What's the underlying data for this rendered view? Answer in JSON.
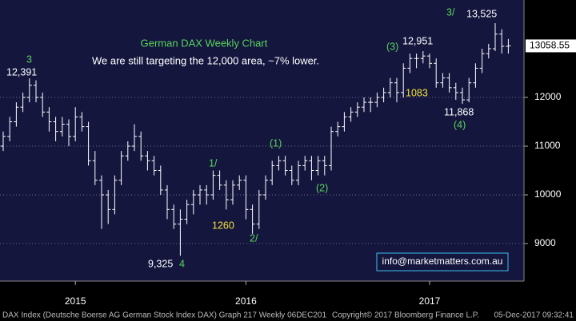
{
  "chart_data": {
    "type": "ohlc",
    "title": "German DAX Weekly Chart",
    "annotations": [
      "We are still targeting the 12,000 area, ~7% lower.",
      "12,391",
      "3",
      "9,325",
      "4",
      "1/",
      "1260",
      "2/",
      "(1)",
      "(2)",
      "(3)",
      "12,951",
      "1083",
      "11,868",
      "(4)",
      "3/",
      "13,525"
    ],
    "contact": "info@marketmatters.com.au",
    "footer": {
      "left": "DAX Index (Deutsche Boerse AG German Stock Index DAX) Graph 217  Weekly 06DEC201",
      "middle": "Copyright© 2017 Bloomberg Finance L.P.",
      "right": "05-Dec-2017 09:32:41"
    },
    "color": "#ffffff",
    "ylim": [
      8230,
      14000
    ],
    "yticks": [
      9000,
      10000,
      11000,
      12000
    ],
    "xticks": [
      {
        "value": 11,
        "label": "2015"
      },
      {
        "value": 37,
        "label": "2016"
      },
      {
        "value": 65,
        "label": "2017"
      }
    ],
    "grid": true,
    "ohlc": [
      [
        11000,
        11300,
        10900,
        11200
      ],
      [
        11200,
        11600,
        11100,
        11500
      ],
      [
        11500,
        11900,
        11400,
        11800
      ],
      [
        11800,
        12100,
        11700,
        12000
      ],
      [
        12000,
        12391,
        11900,
        12250
      ],
      [
        12250,
        12350,
        11900,
        12000
      ],
      [
        12000,
        12100,
        11600,
        11700
      ],
      [
        11700,
        11800,
        11300,
        11500
      ],
      [
        11500,
        11600,
        11100,
        11300
      ],
      [
        11300,
        11600,
        11200,
        11450
      ],
      [
        11450,
        11550,
        11000,
        11200
      ],
      [
        11200,
        11800,
        11100,
        11600
      ],
      [
        11600,
        11700,
        11300,
        11400
      ],
      [
        11400,
        11500,
        10600,
        10700
      ],
      [
        10700,
        10900,
        10200,
        10300
      ],
      [
        10300,
        10400,
        9300,
        10000
      ],
      [
        10000,
        10100,
        9400,
        9700
      ],
      [
        9700,
        10400,
        9600,
        10300
      ],
      [
        10300,
        10900,
        10200,
        10800
      ],
      [
        10800,
        11100,
        10700,
        11000
      ],
      [
        11000,
        11450,
        10900,
        11200
      ],
      [
        11200,
        11300,
        10700,
        10800
      ],
      [
        10800,
        10900,
        10500,
        10700
      ],
      [
        10700,
        10800,
        10400,
        10500
      ],
      [
        10500,
        10600,
        10000,
        10100
      ],
      [
        10100,
        10200,
        9500,
        9700
      ],
      [
        9700,
        9800,
        9300,
        9400
      ],
      [
        9400,
        9700,
        8750,
        9500
      ],
      [
        9500,
        9900,
        9400,
        9800
      ],
      [
        9800,
        10100,
        9600,
        10000
      ],
      [
        10000,
        10200,
        9800,
        10100
      ],
      [
        10100,
        10200,
        9800,
        10000
      ],
      [
        10000,
        10500,
        9900,
        10400
      ],
      [
        10400,
        10500,
        10100,
        10200
      ],
      [
        10200,
        10300,
        9700,
        9900
      ],
      [
        9900,
        10300,
        9800,
        10200
      ],
      [
        10200,
        10400,
        10100,
        10300
      ],
      [
        10300,
        10400,
        9500,
        9700
      ],
      [
        9700,
        9800,
        9200,
        9400
      ],
      [
        9400,
        10100,
        9300,
        10000
      ],
      [
        10000,
        10400,
        9900,
        10300
      ],
      [
        10300,
        10700,
        10200,
        10600
      ],
      [
        10600,
        10800,
        10500,
        10700
      ],
      [
        10700,
        10800,
        10400,
        10500
      ],
      [
        10500,
        10600,
        10200,
        10300
      ],
      [
        10300,
        10700,
        10200,
        10600
      ],
      [
        10600,
        10800,
        10500,
        10700
      ],
      [
        10700,
        10800,
        10300,
        10500
      ],
      [
        10500,
        10800,
        10400,
        10700
      ],
      [
        10700,
        10800,
        10400,
        10600
      ],
      [
        10600,
        11400,
        10500,
        11300
      ],
      [
        11300,
        11500,
        11200,
        11400
      ],
      [
        11400,
        11700,
        11300,
        11600
      ],
      [
        11600,
        11800,
        11500,
        11700
      ],
      [
        11700,
        11900,
        11600,
        11800
      ],
      [
        11800,
        12000,
        11700,
        11900
      ],
      [
        11900,
        12000,
        11700,
        11900
      ],
      [
        11900,
        12100,
        11800,
        12000
      ],
      [
        12000,
        12200,
        11900,
        12100
      ],
      [
        12100,
        12400,
        12000,
        12300
      ],
      [
        12300,
        12400,
        11900,
        12100
      ],
      [
        12100,
        12700,
        12000,
        12600
      ],
      [
        12600,
        12900,
        12500,
        12800
      ],
      [
        12800,
        12900,
        12600,
        12800
      ],
      [
        12800,
        12951,
        12700,
        12850
      ],
      [
        12850,
        12900,
        12600,
        12700
      ],
      [
        12700,
        12800,
        12200,
        12300
      ],
      [
        12300,
        12500,
        12200,
        12400
      ],
      [
        12400,
        12500,
        12100,
        12200
      ],
      [
        12200,
        12300,
        11950,
        12100
      ],
      [
        12100,
        12200,
        11868,
        11950
      ],
      [
        11950,
        12400,
        11900,
        12300
      ],
      [
        12300,
        12700,
        12200,
        12600
      ],
      [
        12600,
        13000,
        12500,
        12900
      ],
      [
        12900,
        13100,
        12800,
        13000
      ],
      [
        13000,
        13525,
        12950,
        13300
      ],
      [
        13300,
        13400,
        12900,
        13050
      ],
      [
        13050,
        13200,
        12900,
        13058.55
      ]
    ]
  }
}
